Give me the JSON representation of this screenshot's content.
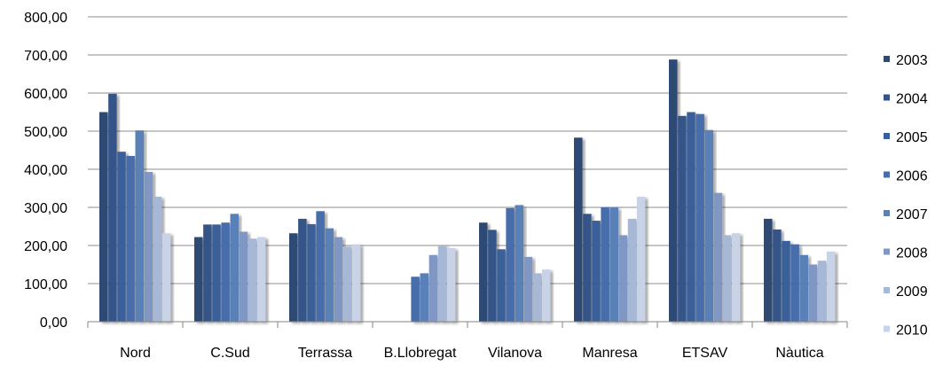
{
  "chart_data": {
    "type": "bar",
    "categories": [
      "Nord",
      "C.Sud",
      "Terrassa",
      "B.Llobregat",
      "Vilanova",
      "Manresa",
      "ETSAV",
      "Nàutica"
    ],
    "series": [
      {
        "name": "2003",
        "color": "#2E4A73",
        "values": [
          550,
          222,
          232,
          null,
          260,
          483,
          688,
          270
        ]
      },
      {
        "name": "2004",
        "color": "#345489",
        "values": [
          598,
          255,
          270,
          null,
          241,
          283,
          540,
          242
        ]
      },
      {
        "name": "2005",
        "color": "#3B5E99",
        "values": [
          446,
          255,
          256,
          null,
          190,
          265,
          550,
          212
        ]
      },
      {
        "name": "2006",
        "color": "#466DAA",
        "values": [
          435,
          260,
          290,
          118,
          298,
          300,
          545,
          203
        ]
      },
      {
        "name": "2007",
        "color": "#5A80B8",
        "values": [
          502,
          283,
          245,
          127,
          306,
          300,
          503,
          175
        ]
      },
      {
        "name": "2008",
        "color": "#8097C3",
        "values": [
          393,
          236,
          222,
          175,
          170,
          227,
          338,
          150
        ]
      },
      {
        "name": "2009",
        "color": "#A7B7D6",
        "values": [
          328,
          218,
          197,
          200,
          127,
          270,
          227,
          160
        ]
      },
      {
        "name": "2010",
        "color": "#C9D3E7",
        "values": [
          232,
          222,
          203,
          193,
          137,
          328,
          232,
          184
        ]
      }
    ],
    "ylim": [
      0,
      800
    ],
    "yticks": [
      "0,00",
      "100,00",
      "200,00",
      "300,00",
      "400,00",
      "500,00",
      "600,00",
      "700,00",
      "800,00"
    ],
    "title": "",
    "xlabel": "",
    "ylabel": "",
    "grid": true,
    "legend_position": "right"
  }
}
